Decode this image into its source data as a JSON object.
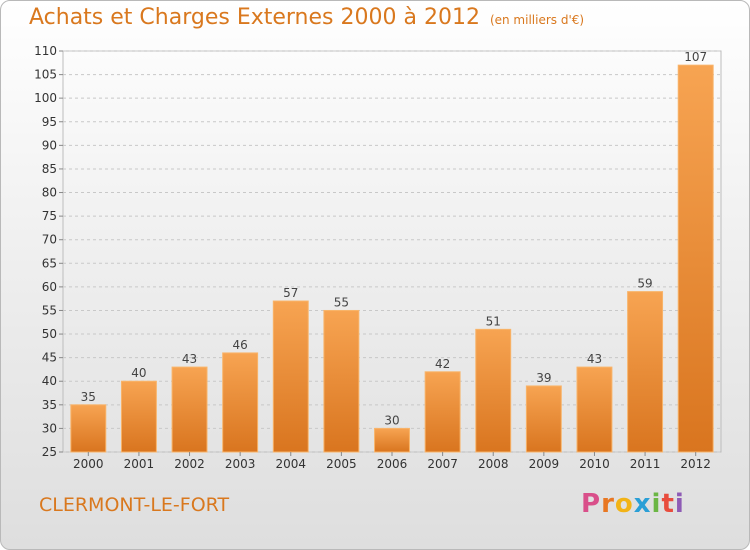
{
  "chart_data": {
    "type": "bar",
    "title": "Achats et Charges Externes 2000 à 2012",
    "unit_note": "(en milliers d'€)",
    "categories": [
      "2000",
      "2001",
      "2002",
      "2003",
      "2004",
      "2005",
      "2006",
      "2007",
      "2008",
      "2009",
      "2010",
      "2011",
      "2012"
    ],
    "values": [
      35,
      40,
      43,
      46,
      57,
      55,
      30,
      42,
      51,
      39,
      43,
      59,
      107
    ],
    "ylim": [
      25,
      110
    ],
    "yticks": [
      25,
      30,
      35,
      40,
      45,
      50,
      55,
      60,
      65,
      70,
      75,
      80,
      85,
      90,
      95,
      100,
      105,
      110
    ],
    "grid": true,
    "bar_color": "#f0a04b"
  },
  "footer": {
    "location": "CLERMONT-LE-FORT",
    "brand_letters": [
      "P",
      "r",
      "o",
      "x",
      "i",
      "t",
      "i"
    ],
    "brand_colors": [
      "#d94f8a",
      "#e87722",
      "#f2b316",
      "#2a9fd6",
      "#6bb644",
      "#e84c3d",
      "#8e5bb5"
    ]
  }
}
